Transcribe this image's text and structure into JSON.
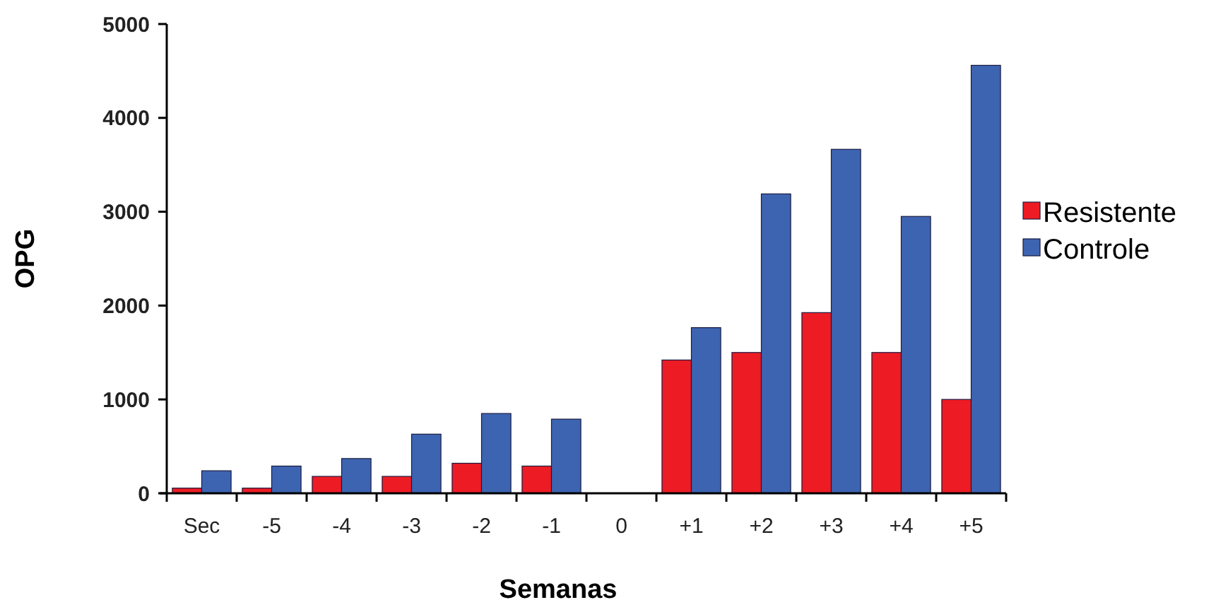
{
  "chart_data": {
    "type": "bar",
    "xlabel": "Semanas",
    "ylabel": "OPG",
    "categories": [
      "Sec",
      "-5",
      "-4",
      "-3",
      "-2",
      "-1",
      "0",
      "+1",
      "+2",
      "+3",
      "+4",
      "+5"
    ],
    "series": [
      {
        "name": "Resistente",
        "color": "#ed1c24",
        "values": [
          55,
          55,
          180,
          180,
          320,
          290,
          0,
          1420,
          1500,
          1925,
          1500,
          1000
        ]
      },
      {
        "name": "Controle",
        "color": "#3d64b0",
        "values": [
          240,
          290,
          370,
          630,
          850,
          790,
          0,
          1765,
          3190,
          3665,
          2950,
          4560
        ]
      }
    ],
    "ylim": [
      0,
      5000
    ],
    "yticks": [
      0,
      1000,
      2000,
      3000,
      4000,
      5000
    ],
    "grid": false,
    "legend": "right"
  }
}
